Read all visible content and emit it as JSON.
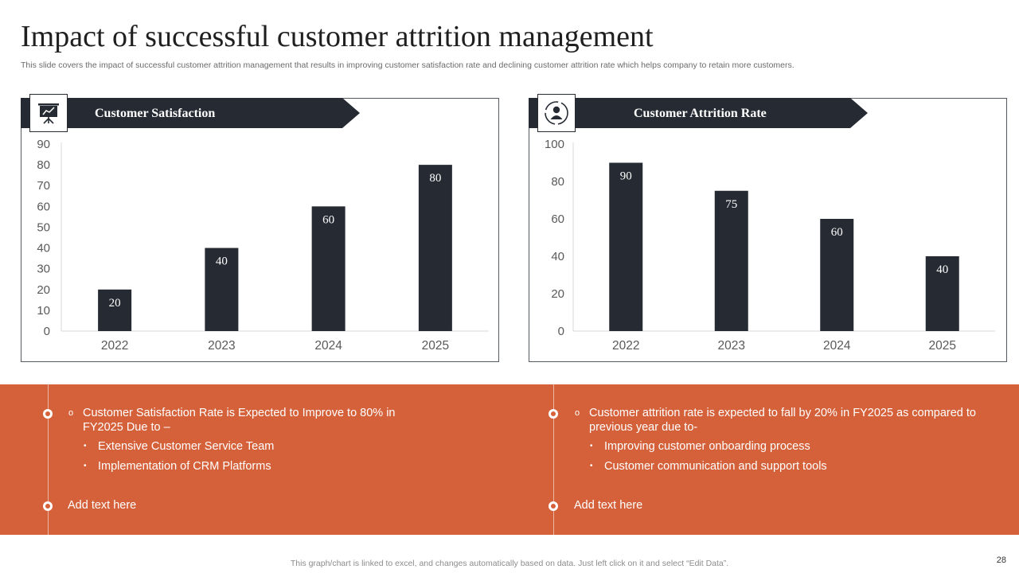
{
  "header": {
    "title": "Impact of successful customer attrition management",
    "subtitle": "This slide covers the impact of successful customer attrition management that results in improving customer satisfaction rate and declining customer attrition rate which helps company to retain more customers."
  },
  "panels": [
    {
      "title": "Customer Satisfaction",
      "icon": "presentation-board-icon"
    },
    {
      "title": "Customer Attrition Rate",
      "icon": "customer-profile-icon"
    }
  ],
  "chart_data": [
    {
      "type": "bar",
      "title": "Customer Satisfaction",
      "categories": [
        "2022",
        "2023",
        "2024",
        "2025"
      ],
      "values": [
        20,
        40,
        60,
        80
      ],
      "ylim": [
        0,
        90
      ],
      "yticks": [
        0,
        10,
        20,
        30,
        40,
        50,
        60,
        70,
        80,
        90
      ],
      "xlabel": "",
      "ylabel": "",
      "bar_color": "#262b33"
    },
    {
      "type": "bar",
      "title": "Customer Attrition Rate",
      "categories": [
        "2022",
        "2023",
        "2024",
        "2025"
      ],
      "values": [
        90,
        75,
        60,
        40
      ],
      "ylim": [
        0,
        100
      ],
      "yticks": [
        0,
        20,
        40,
        60,
        80,
        100
      ],
      "xlabel": "",
      "ylabel": "",
      "bar_color": "#262b33"
    }
  ],
  "notes": {
    "left": {
      "main": "Customer Satisfaction Rate is Expected to Improve to 80% in FY2025 Due to –",
      "subs": [
        "Extensive Customer Service Team",
        "Implementation of CRM Platforms"
      ],
      "extra": "Add text here"
    },
    "right": {
      "main": "Customer attrition rate is expected to fall by 20% in FY2025 as compared to previous year due to-",
      "subs": [
        "Improving customer onboarding process",
        "Customer communication and support tools"
      ],
      "extra": "Add text here"
    }
  },
  "footer": {
    "note": "This graph/chart is linked to excel,  and changes automatically based on data. Just left click on it and select “Edit Data”.",
    "page": "28"
  },
  "colors": {
    "accent": "#d5613a",
    "dark": "#262b33"
  }
}
